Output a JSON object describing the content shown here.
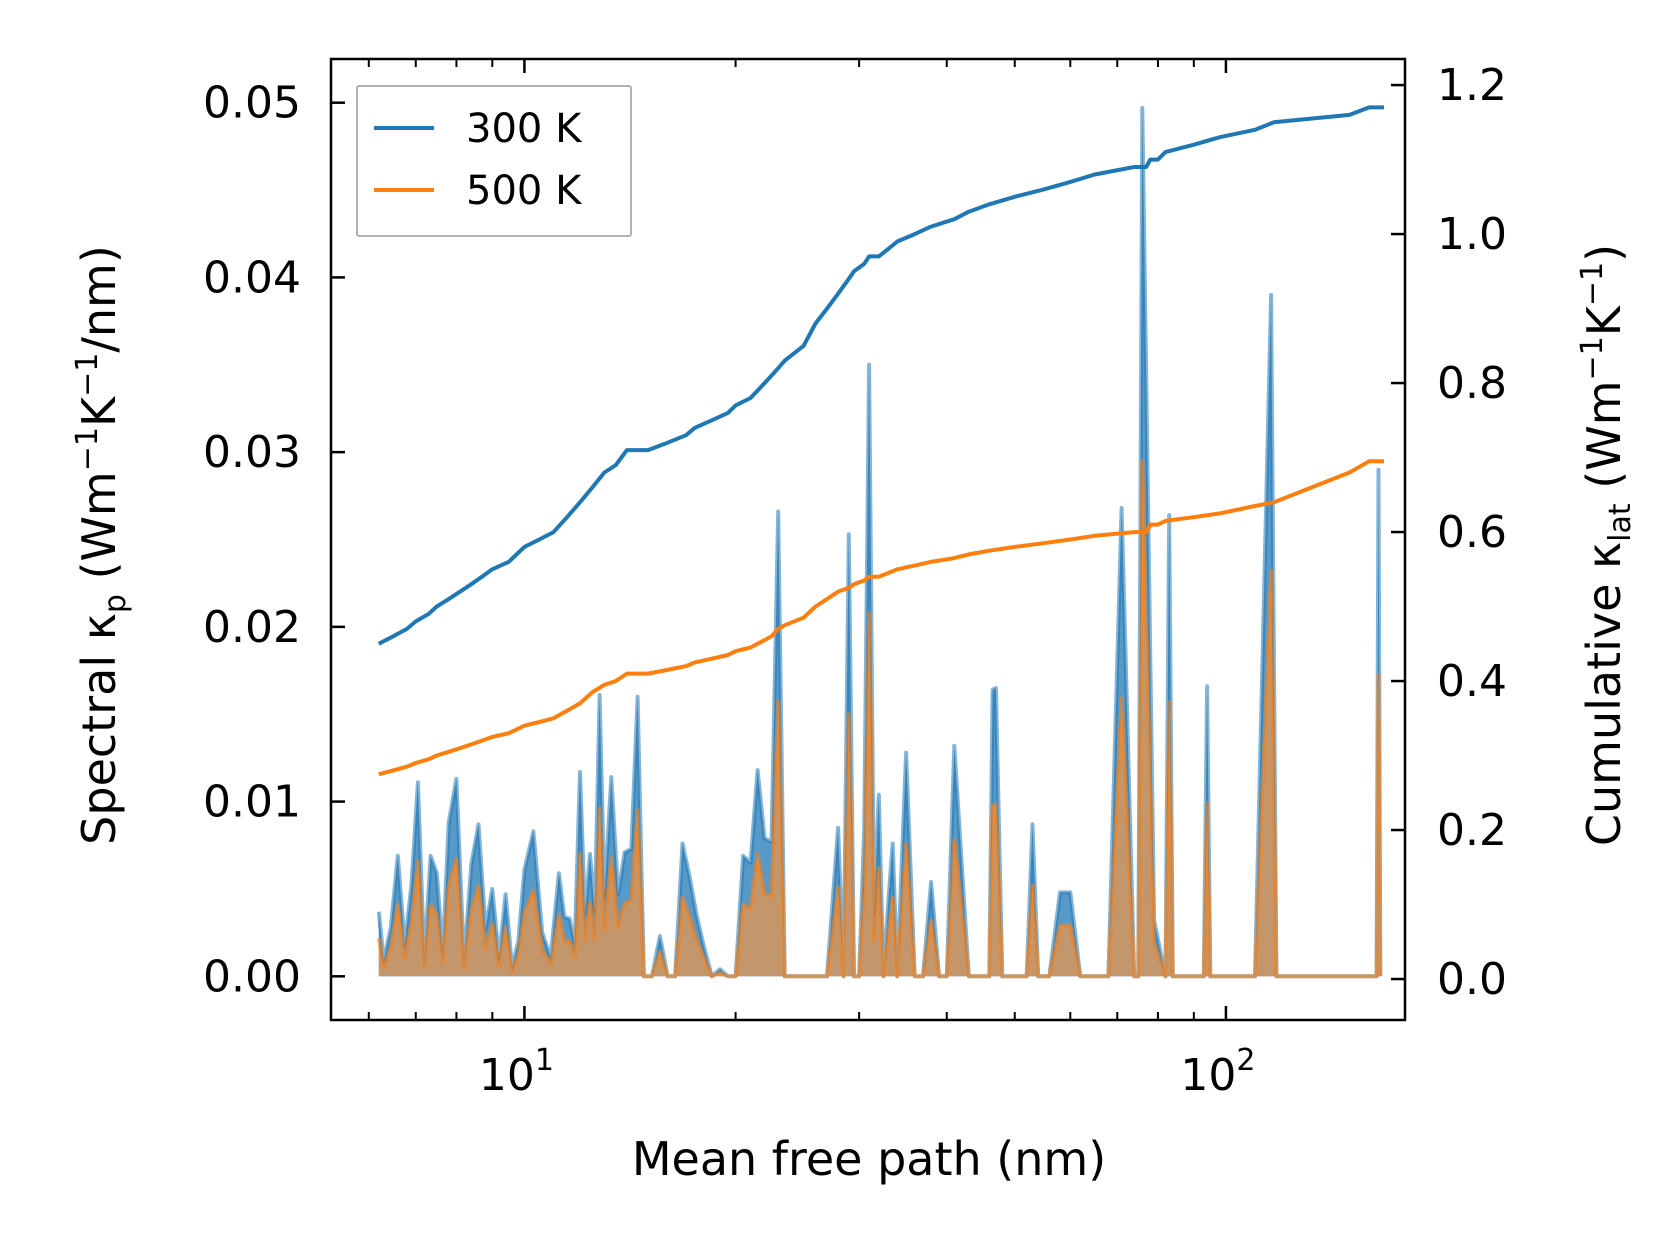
{
  "colors": {
    "series_300K": "#1f77b4",
    "series_500K": "#ff7f0e",
    "fill_300K": "#1f77b4",
    "fill_500K": "#d6955a",
    "axes": "#000000",
    "legend_border": "#999999"
  },
  "chart_data": {
    "type": "line",
    "title": "",
    "xlabel": "Mean free path (nm)",
    "ylabel_left": {
      "main": "Spectral κ",
      "sub": "p",
      "units_open": " (Wm",
      "units_sup1": "−1",
      "units_mid": "K",
      "units_sup2": "−1",
      "units_close": "/nm)"
    },
    "ylabel_right": {
      "main": "Cumulative κ",
      "sub": "lat",
      "units_open": " (Wm",
      "units_sup1": "−1",
      "units_mid": "K",
      "units_sup2": "−1",
      "units_close": ")"
    },
    "xscale": "log",
    "xlim": [
      5.3,
      180
    ],
    "ylim_left": [
      -0.0025,
      0.0525
    ],
    "ylim_right": [
      -0.055,
      1.235
    ],
    "x_ticks": [
      {
        "value": 10,
        "base": "10",
        "exp": "1"
      },
      {
        "value": 100,
        "base": "10",
        "exp": "2"
      }
    ],
    "y_left_ticks": [
      {
        "value": 0.0,
        "label": "0.00"
      },
      {
        "value": 0.01,
        "label": "0.01"
      },
      {
        "value": 0.02,
        "label": "0.02"
      },
      {
        "value": 0.03,
        "label": "0.03"
      },
      {
        "value": 0.04,
        "label": "0.04"
      },
      {
        "value": 0.05,
        "label": "0.05"
      }
    ],
    "y_right_ticks": [
      {
        "value": 0.0,
        "label": "0.0"
      },
      {
        "value": 0.2,
        "label": "0.2"
      },
      {
        "value": 0.4,
        "label": "0.4"
      },
      {
        "value": 0.6,
        "label": "0.6"
      },
      {
        "value": 0.8,
        "label": "0.8"
      },
      {
        "value": 1.0,
        "label": "1.0"
      },
      {
        "value": 1.2,
        "label": "1.2"
      }
    ],
    "legend": {
      "location": "upper-left",
      "entries": [
        "300 K",
        "500 K"
      ]
    },
    "spectral_x": [
      6.2,
      6.3,
      6.45,
      6.6,
      6.75,
      6.9,
      7.05,
      7.2,
      7.35,
      7.5,
      7.65,
      7.8,
      8.0,
      8.2,
      8.4,
      8.6,
      8.8,
      9.0,
      9.2,
      9.4,
      9.6,
      9.8,
      10.0,
      10.3,
      10.6,
      10.9,
      11.2,
      11.4,
      11.6,
      11.8,
      12.0,
      12.2,
      12.4,
      12.6,
      12.8,
      13.0,
      13.3,
      13.6,
      13.9,
      14.2,
      14.5,
      14.8,
      15.2,
      15.6,
      16.0,
      16.4,
      16.8,
      17.2,
      17.6,
      18.0,
      18.5,
      19.0,
      19.5,
      20.0,
      20.5,
      21.0,
      21.5,
      22.0,
      22.5,
      23.0,
      23.5,
      24.0,
      24.5,
      25.0,
      26.0,
      27.0,
      28.0,
      28.5,
      29.0,
      29.5,
      30.0,
      30.5,
      31.0,
      31.5,
      32.0,
      32.5,
      33.0,
      33.5,
      34.0,
      35.0,
      36.0,
      37.0,
      38.0,
      39.0,
      40.0,
      41.0,
      43.0,
      45.0,
      46.0,
      46.5,
      47.0,
      48.0,
      50.0,
      52.0,
      53.0,
      54.0,
      56.0,
      58.0,
      60.0,
      62.0,
      65.0,
      68.0,
      71.0,
      74.0,
      75.0,
      76.0,
      79.0,
      82.0,
      83.0,
      84.0,
      86.0,
      88.0,
      90.0,
      93.0,
      94.0,
      95.0,
      99.0,
      105.0,
      110.0,
      116.0,
      118.0,
      120.0,
      126.0,
      140.0,
      155.0,
      164.0,
      165.0,
      166.0
    ],
    "series": [
      {
        "name": "300 K",
        "spectral": [
          0.0037,
          0.0009,
          0.0028,
          0.0069,
          0.0018,
          0.0052,
          0.0111,
          0.0009,
          0.0069,
          0.0059,
          0.0013,
          0.0088,
          0.0113,
          0.0008,
          0.0064,
          0.0087,
          0.0027,
          0.005,
          0.001,
          0.0047,
          0.0005,
          0.002,
          0.0061,
          0.0083,
          0.0025,
          0.0011,
          0.0059,
          0.0034,
          0.0033,
          0.0019,
          0.0117,
          0.0035,
          0.007,
          0.0036,
          0.0161,
          0.0045,
          0.0114,
          0.0047,
          0.0071,
          0.0073,
          0.016,
          0.0,
          0.0,
          0.0023,
          0.0,
          0.0,
          0.0076,
          0.0057,
          0.0035,
          0.0018,
          0.0,
          0.0004,
          0.0,
          0.0,
          0.0069,
          0.0065,
          0.0118,
          0.0079,
          0.0077,
          0.0266,
          0.0,
          0.0,
          0.0,
          0.0,
          0.0,
          0.0,
          0.0085,
          0.0,
          0.0253,
          0.0,
          0.0,
          0.0084,
          0.035,
          0.0035,
          0.0104,
          0.0,
          0.0042,
          0.0076,
          0.0,
          0.0128,
          0.0,
          0.0,
          0.0054,
          0.0,
          0.0,
          0.0132,
          0.0,
          0.0,
          0.0,
          0.0164,
          0.0165,
          0.0,
          0.0,
          0.0,
          0.0087,
          0.0,
          0.0,
          0.0048,
          0.0048,
          0.0,
          0.0,
          0.0,
          0.0268,
          0.0,
          0.0,
          0.0497,
          0.0032,
          0.0,
          0.0264,
          0.0,
          0.0,
          0.0,
          0.0,
          0.0,
          0.0166,
          0.0,
          0.0,
          0.0,
          0.0,
          0.039,
          0.0,
          0.0,
          0.0,
          0.0,
          0.0,
          0.0,
          0.029,
          0.0
        ],
        "cumulative_x": [
          6.2,
          6.5,
          6.8,
          7.0,
          7.3,
          7.5,
          7.8,
          8.1,
          8.4,
          8.7,
          9.0,
          9.5,
          10.0,
          10.5,
          11.0,
          11.5,
          12.0,
          12.5,
          13.0,
          13.5,
          14.0,
          14.5,
          15.0,
          16.0,
          17.0,
          17.5,
          18.5,
          19.5,
          20.0,
          21.0,
          22.0,
          22.5,
          23.0,
          23.5,
          25.0,
          26.0,
          26.5,
          27.0,
          28.0,
          29.0,
          29.5,
          30.5,
          31.0,
          32.0,
          33.0,
          34.0,
          36.0,
          38.0,
          41.0,
          43.0,
          46.0,
          50.0,
          55.0,
          60.0,
          65.0,
          74.0,
          77.0,
          78.0,
          80.0,
          82.0,
          90.0,
          98.0,
          110.0,
          117.0,
          150.0,
          160.0,
          168.0
        ],
        "cumulative": [
          0.45,
          0.46,
          0.47,
          0.48,
          0.49,
          0.5,
          0.51,
          0.52,
          0.53,
          0.54,
          0.55,
          0.56,
          0.58,
          0.59,
          0.6,
          0.62,
          0.64,
          0.66,
          0.68,
          0.69,
          0.71,
          0.71,
          0.71,
          0.72,
          0.73,
          0.74,
          0.75,
          0.76,
          0.77,
          0.78,
          0.8,
          0.81,
          0.82,
          0.83,
          0.85,
          0.88,
          0.89,
          0.9,
          0.92,
          0.94,
          0.95,
          0.96,
          0.97,
          0.97,
          0.98,
          0.99,
          1.0,
          1.01,
          1.02,
          1.03,
          1.04,
          1.05,
          1.06,
          1.07,
          1.08,
          1.09,
          1.09,
          1.1,
          1.1,
          1.11,
          1.12,
          1.13,
          1.14,
          1.15,
          1.16,
          1.17,
          1.17
        ]
      },
      {
        "name": "500 K",
        "spectral": [
          0.0022,
          0.0005,
          0.0017,
          0.0041,
          0.0011,
          0.0031,
          0.0066,
          0.0005,
          0.0041,
          0.0035,
          0.0008,
          0.0052,
          0.0067,
          0.0005,
          0.0038,
          0.0052,
          0.0016,
          0.003,
          0.0006,
          0.0028,
          0.0003,
          0.0012,
          0.0036,
          0.0049,
          0.0015,
          0.0007,
          0.0035,
          0.002,
          0.002,
          0.0011,
          0.007,
          0.0021,
          0.0042,
          0.0021,
          0.0096,
          0.0027,
          0.0068,
          0.0028,
          0.0042,
          0.0043,
          0.0095,
          0.0,
          0.0,
          0.0014,
          0.0,
          0.0,
          0.0045,
          0.0034,
          0.0021,
          0.0011,
          0.0,
          0.0002,
          0.0,
          0.0,
          0.0041,
          0.0039,
          0.007,
          0.0047,
          0.0046,
          0.0158,
          0.0,
          0.0,
          0.0,
          0.0,
          0.0,
          0.0,
          0.0051,
          0.0,
          0.015,
          0.0,
          0.0,
          0.005,
          0.0208,
          0.0021,
          0.0062,
          0.0,
          0.0025,
          0.0045,
          0.0,
          0.0076,
          0.0,
          0.0,
          0.0032,
          0.0,
          0.0,
          0.0078,
          0.0,
          0.0,
          0.0,
          0.0098,
          0.0098,
          0.0,
          0.0,
          0.0,
          0.0052,
          0.0,
          0.0,
          0.0029,
          0.0029,
          0.0,
          0.0,
          0.0,
          0.0159,
          0.0,
          0.0,
          0.0295,
          0.0019,
          0.0,
          0.0157,
          0.0,
          0.0,
          0.0,
          0.0,
          0.0,
          0.0099,
          0.0,
          0.0,
          0.0,
          0.0,
          0.0232,
          0.0,
          0.0,
          0.0,
          0.0,
          0.0,
          0.0,
          0.0172,
          0.0
        ],
        "cumulative_x": [
          6.2,
          6.5,
          6.8,
          7.0,
          7.3,
          7.5,
          7.8,
          8.1,
          8.4,
          8.7,
          9.0,
          9.5,
          10.0,
          10.5,
          11.0,
          11.5,
          12.0,
          12.5,
          13.0,
          13.5,
          14.0,
          14.5,
          15.0,
          16.0,
          17.0,
          17.5,
          18.5,
          19.5,
          20.0,
          21.0,
          22.0,
          22.5,
          23.0,
          23.5,
          25.0,
          26.0,
          26.5,
          27.0,
          28.0,
          29.0,
          29.5,
          30.5,
          31.0,
          32.0,
          33.0,
          34.0,
          36.0,
          38.0,
          41.0,
          43.0,
          46.0,
          50.0,
          55.0,
          60.0,
          65.0,
          74.0,
          77.0,
          78.0,
          80.0,
          82.0,
          90.0,
          98.0,
          110.0,
          117.0,
          150.0,
          160.0,
          168.0
        ],
        "cumulative": [
          0.275,
          0.28,
          0.285,
          0.29,
          0.295,
          0.3,
          0.305,
          0.31,
          0.315,
          0.32,
          0.325,
          0.33,
          0.34,
          0.345,
          0.35,
          0.36,
          0.37,
          0.385,
          0.395,
          0.4,
          0.41,
          0.41,
          0.41,
          0.415,
          0.42,
          0.425,
          0.43,
          0.435,
          0.44,
          0.445,
          0.455,
          0.46,
          0.47,
          0.475,
          0.485,
          0.5,
          0.505,
          0.51,
          0.52,
          0.525,
          0.53,
          0.535,
          0.54,
          0.54,
          0.545,
          0.55,
          0.555,
          0.56,
          0.565,
          0.57,
          0.575,
          0.58,
          0.585,
          0.59,
          0.595,
          0.6,
          0.6,
          0.61,
          0.61,
          0.615,
          0.62,
          0.625,
          0.635,
          0.64,
          0.68,
          0.695,
          0.695
        ]
      }
    ]
  }
}
